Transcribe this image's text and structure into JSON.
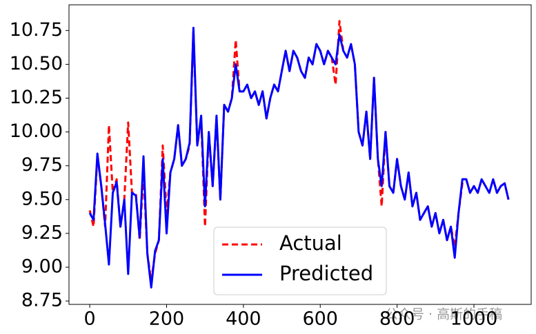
{
  "chart_data": {
    "type": "line",
    "x": [
      0,
      10,
      20,
      30,
      40,
      50,
      60,
      70,
      80,
      90,
      100,
      110,
      120,
      130,
      140,
      150,
      160,
      170,
      180,
      190,
      200,
      210,
      220,
      230,
      240,
      250,
      260,
      270,
      280,
      290,
      300,
      310,
      320,
      330,
      340,
      350,
      360,
      370,
      380,
      390,
      400,
      410,
      420,
      430,
      440,
      450,
      460,
      470,
      480,
      490,
      500,
      510,
      520,
      530,
      540,
      550,
      560,
      570,
      580,
      590,
      600,
      610,
      620,
      630,
      640,
      650,
      660,
      670,
      680,
      690,
      700,
      710,
      720,
      730,
      740,
      750,
      760,
      770,
      780,
      790,
      800,
      810,
      820,
      830,
      840,
      850,
      860,
      870,
      880,
      890,
      900,
      910,
      920,
      930,
      940,
      950,
      960,
      970,
      980,
      990,
      1000,
      1010,
      1020,
      1030,
      1040,
      1050,
      1060,
      1070,
      1080,
      1090
    ],
    "series": [
      {
        "name": "Actual",
        "color": "#ff0000",
        "dash": true,
        "values": [
          9.42,
          9.3,
          9.82,
          9.6,
          9.3,
          10.05,
          9.55,
          9.65,
          9.3,
          9.5,
          10.07,
          9.55,
          9.55,
          9.2,
          9.7,
          9.1,
          8.9,
          9.1,
          9.2,
          9.9,
          9.4,
          9.7,
          9.8,
          10.05,
          9.75,
          9.8,
          9.9,
          10.75,
          9.9,
          10.1,
          9.3,
          10.0,
          9.6,
          10.1,
          9.5,
          10.2,
          10.15,
          10.25,
          10.68,
          10.3,
          10.3,
          10.35,
          10.25,
          10.3,
          10.2,
          10.3,
          10.1,
          10.25,
          10.35,
          10.3,
          10.45,
          10.6,
          10.45,
          10.6,
          10.55,
          10.45,
          10.4,
          10.55,
          10.5,
          10.65,
          10.6,
          10.5,
          10.6,
          10.55,
          10.35,
          10.82,
          10.6,
          10.55,
          10.65,
          10.5,
          10.0,
          9.9,
          10.15,
          9.8,
          10.4,
          9.8,
          9.45,
          10.0,
          9.6,
          9.55,
          9.8,
          9.6,
          9.5,
          9.7,
          9.45,
          9.55,
          9.35,
          9.4,
          9.45,
          9.3,
          9.4,
          9.25,
          9.35,
          9.2,
          9.3,
          9.15,
          9.4,
          9.62,
          9.65,
          9.55,
          9.6,
          9.55,
          9.65,
          9.6,
          9.55,
          9.65,
          9.55,
          9.6,
          9.62,
          9.5
        ]
      },
      {
        "name": "Predicted",
        "color": "#0000ff",
        "dash": false,
        "values": [
          9.4,
          9.35,
          9.84,
          9.6,
          9.32,
          9.02,
          9.55,
          9.63,
          9.3,
          9.5,
          8.95,
          9.55,
          9.53,
          9.22,
          9.82,
          9.1,
          8.85,
          9.12,
          9.2,
          9.8,
          9.25,
          9.7,
          9.8,
          10.05,
          9.75,
          9.8,
          9.92,
          10.77,
          9.9,
          10.12,
          9.45,
          10.0,
          9.6,
          10.12,
          9.5,
          10.2,
          10.15,
          10.25,
          10.5,
          10.3,
          10.3,
          10.35,
          10.25,
          10.3,
          10.2,
          10.3,
          10.1,
          10.25,
          10.35,
          10.3,
          10.45,
          10.6,
          10.45,
          10.6,
          10.55,
          10.45,
          10.4,
          10.55,
          10.5,
          10.65,
          10.6,
          10.5,
          10.6,
          10.55,
          10.5,
          10.72,
          10.6,
          10.55,
          10.65,
          10.5,
          10.0,
          9.9,
          10.15,
          9.8,
          10.4,
          9.8,
          9.6,
          10.0,
          9.6,
          9.55,
          9.8,
          9.6,
          9.5,
          9.7,
          9.45,
          9.55,
          9.35,
          9.4,
          9.45,
          9.3,
          9.4,
          9.25,
          9.35,
          9.2,
          9.3,
          9.07,
          9.4,
          9.65,
          9.65,
          9.55,
          9.6,
          9.55,
          9.65,
          9.6,
          9.55,
          9.65,
          9.55,
          9.6,
          9.62,
          9.5
        ]
      }
    ],
    "xlim": [
      -54,
      1149
    ],
    "ylim": [
      8.725,
      10.94
    ],
    "xticks": [
      0,
      200,
      400,
      600,
      800,
      1000
    ],
    "yticks": [
      8.75,
      {
        "value": 9,
        "label": "9.00"
      },
      9.25,
      {
        "value": 9.5,
        "label": "9.50"
      },
      9.75,
      {
        "value": 10,
        "label": "10.00"
      },
      10.25,
      {
        "value": 10.5,
        "label": "10.50"
      },
      10.75
    ],
    "legend": "lower center",
    "watermark": "公众号 · 高斯的手稿"
  }
}
